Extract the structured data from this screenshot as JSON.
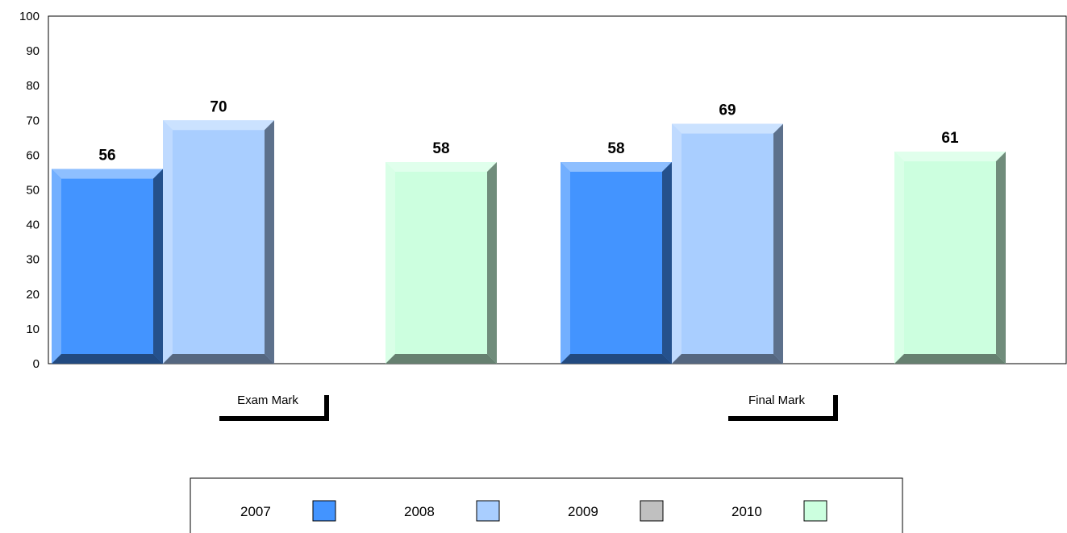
{
  "chart_data": {
    "type": "bar",
    "categories": [
      "Exam Mark",
      "Final Mark"
    ],
    "series": [
      {
        "name": "2007",
        "values": [
          56,
          58
        ],
        "color": "#4394ff"
      },
      {
        "name": "2008",
        "values": [
          70,
          69
        ],
        "color": "#a9ceff"
      },
      {
        "name": "2009",
        "values": [
          null,
          null
        ],
        "color": "#c0c0c0"
      },
      {
        "name": "2010",
        "values": [
          58,
          61
        ],
        "color": "#ccffdf"
      }
    ],
    "yticks": [
      "0",
      "10",
      "20",
      "30",
      "40",
      "50",
      "60",
      "70",
      "80",
      "90",
      "100"
    ],
    "ylim": [
      0,
      100
    ],
    "grid": false,
    "legend_position": "bottom",
    "title": "",
    "xlabel": "",
    "ylabel": ""
  }
}
